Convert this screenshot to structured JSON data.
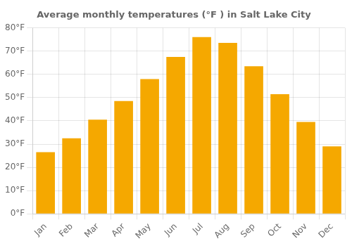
{
  "chart_data": {
    "type": "bar",
    "title": "Average monthly temperatures (°F ) in Salt Lake City",
    "categories": [
      "Jan",
      "Feb",
      "Mar",
      "Apr",
      "May",
      "Jun",
      "Jul",
      "Aug",
      "Sep",
      "Oct",
      "Nov",
      "Dec"
    ],
    "values": [
      26.5,
      32.5,
      40.5,
      48.5,
      58.0,
      67.5,
      76.0,
      73.5,
      63.5,
      51.5,
      39.5,
      29.0
    ],
    "color": "#F5A800",
    "ylim": [
      0,
      80
    ],
    "yticks": [
      {
        "value": 0,
        "label": "0°F"
      },
      {
        "value": 10,
        "label": "10°F"
      },
      {
        "value": 20,
        "label": "20°F"
      },
      {
        "value": 30,
        "label": "30°F"
      },
      {
        "value": 40,
        "label": "40°F"
      },
      {
        "value": 50,
        "label": "50°F"
      },
      {
        "value": 60,
        "label": "60°F"
      },
      {
        "value": 70,
        "label": "70°F"
      },
      {
        "value": 80,
        "label": "80°F"
      }
    ],
    "grid": true
  }
}
